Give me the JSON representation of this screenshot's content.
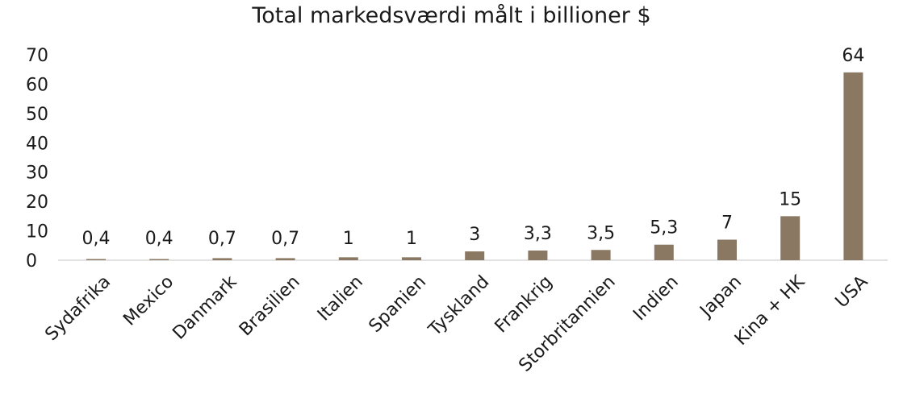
{
  "chart_data": {
    "type": "bar",
    "title": "Total markedsværdi målt i billioner $",
    "categories": [
      "Sydafrika",
      "Mexico",
      "Danmark",
      "Brasilien",
      "Italien",
      "Spanien",
      "Tyskland",
      "Frankrig",
      "Storbritannien",
      "Indien",
      "Japan",
      "Kina + HK",
      "USA"
    ],
    "values": [
      0.4,
      0.4,
      0.7,
      0.7,
      1,
      1,
      3,
      3.3,
      3.5,
      5.3,
      7,
      15,
      64
    ],
    "data_labels": [
      "0,4",
      "0,4",
      "0,7",
      "0,7",
      "1",
      "1",
      "3",
      "3,3",
      "3,5",
      "5,3",
      "7",
      "15",
      "64"
    ],
    "yticks": [
      0,
      10,
      20,
      30,
      40,
      50,
      60,
      70
    ],
    "ylim": [
      0,
      70
    ],
    "xlabel": "",
    "ylabel": "",
    "grid": false,
    "legend": "none",
    "bar_color": "#8a7862",
    "axis_color": "#d9d9d9"
  }
}
